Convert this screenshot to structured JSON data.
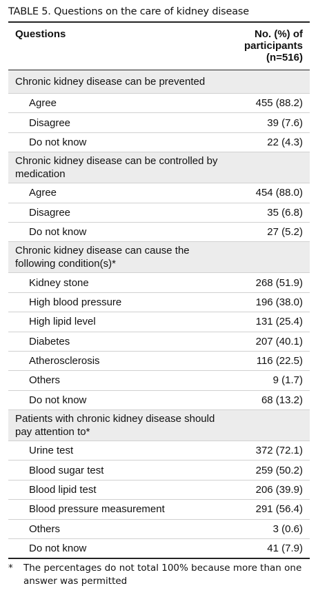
{
  "title": "TABLE 5. Questions on the care of kidney disease",
  "header": {
    "questions": "Questions",
    "count": [
      "No. (%) of",
      "participants",
      "(n=516)"
    ]
  },
  "sections": [
    {
      "question": "Chronic kidney disease can be prevented",
      "rows": [
        [
          "Agree",
          "455 (88.2)"
        ],
        [
          "Disagree",
          "39 (7.6)"
        ],
        [
          "Do not know",
          "22 (4.3)"
        ]
      ]
    },
    {
      "question": "Chronic kidney disease can be controlled by medication",
      "rows": [
        [
          "Agree",
          "454 (88.0)"
        ],
        [
          "Disagree",
          "35 (6.8)"
        ],
        [
          "Do not know",
          "27 (5.2)"
        ]
      ]
    },
    {
      "question": "Chronic kidney disease can cause the following condition(s)*",
      "rows": [
        [
          "Kidney stone",
          "268 (51.9)"
        ],
        [
          "High blood pressure",
          "196 (38.0)"
        ],
        [
          "High lipid level",
          "131 (25.4)"
        ],
        [
          "Diabetes",
          "207 (40.1)"
        ],
        [
          "Atherosclerosis",
          "116 (22.5)"
        ],
        [
          "Others",
          "9 (1.7)"
        ],
        [
          "Do not know",
          "68 (13.2)"
        ]
      ]
    },
    {
      "question": "Patients with chronic kidney disease should pay attention to*",
      "rows": [
        [
          "Urine test",
          "372 (72.1)"
        ],
        [
          "Blood sugar test",
          "259 (50.2)"
        ],
        [
          "Blood lipid test",
          "206 (39.9)"
        ],
        [
          "Blood pressure measurement",
          "291 (56.4)"
        ],
        [
          "Others",
          "3 (0.6)"
        ],
        [
          "Do not know",
          "41 (7.9)"
        ]
      ]
    }
  ],
  "footnote": {
    "marker": "*",
    "text": "The percentages do not total 100% because more than one answer was permitted"
  }
}
